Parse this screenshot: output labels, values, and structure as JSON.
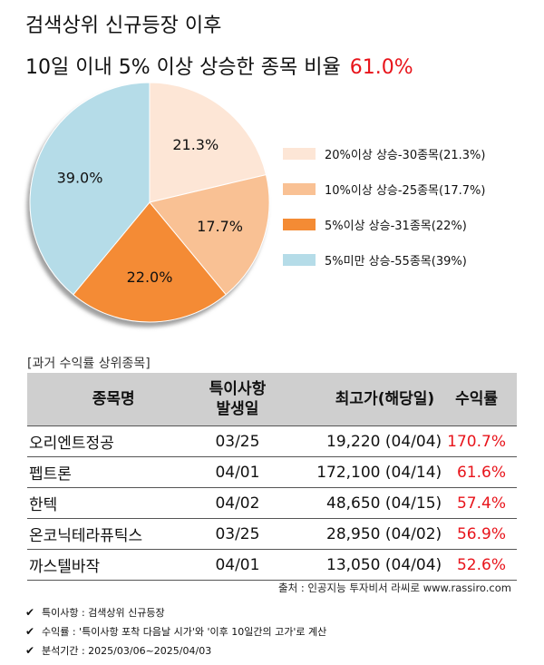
{
  "header": {
    "title_line1": "검색상위 신규등장 이후",
    "title_line2": "10일 이내 5% 이상 상승한 종목 비율",
    "highlight": "61.0%"
  },
  "chart_data": {
    "type": "pie",
    "slices": [
      {
        "label": "21.3%",
        "value": 21.3,
        "color": "#fde6d6",
        "legend": "20%이상 상승-30종목(21.3%)"
      },
      {
        "label": "17.7%",
        "value": 17.7,
        "color": "#f9c194",
        "legend": "10%이상 상승-25종목(17.7%)"
      },
      {
        "label": "22.0%",
        "value": 22.0,
        "color": "#f48b34",
        "legend": "5%이상 상승-31종목(22%)"
      },
      {
        "label": "39.0%",
        "value": 39.0,
        "color": "#b5dce8",
        "legend": "5%미만 상승-55종목(39%)"
      }
    ],
    "legend_position": "right"
  },
  "table": {
    "section_label": "[과거 수익률 상위종목]",
    "headers": {
      "name": "종목명",
      "date_line1": "특이사항",
      "date_line2": "발생일",
      "high": "최고가(해당일)",
      "ret": "수익률"
    },
    "rows": [
      {
        "name": "오리엔트정공",
        "date": "03/25",
        "high": "19,220 (04/04)",
        "ret": "170.7%"
      },
      {
        "name": "펩트론",
        "date": "04/01",
        "high": "172,100 (04/14)",
        "ret": "61.6%"
      },
      {
        "name": "한텍",
        "date": "04/02",
        "high": "48,650 (04/15)",
        "ret": "57.4%"
      },
      {
        "name": "온코닉테라퓨틱스",
        "date": "03/25",
        "high": "28,950 (04/02)",
        "ret": "56.9%"
      },
      {
        "name": "까스텔바작",
        "date": "04/01",
        "high": "13,050 (04/04)",
        "ret": "52.6%"
      }
    ]
  },
  "footer": {
    "source": "출처 : 인공지능 투자비서 라씨로 www.rassiro.com",
    "notes": [
      "특이사항 : 검색상위 신규등장",
      "수익률 : '특이사항 포착 다음날 시가'와 '이후 10일간의 고가'로 계산",
      "분석기간 : 2025/03/06~2025/04/03"
    ]
  }
}
